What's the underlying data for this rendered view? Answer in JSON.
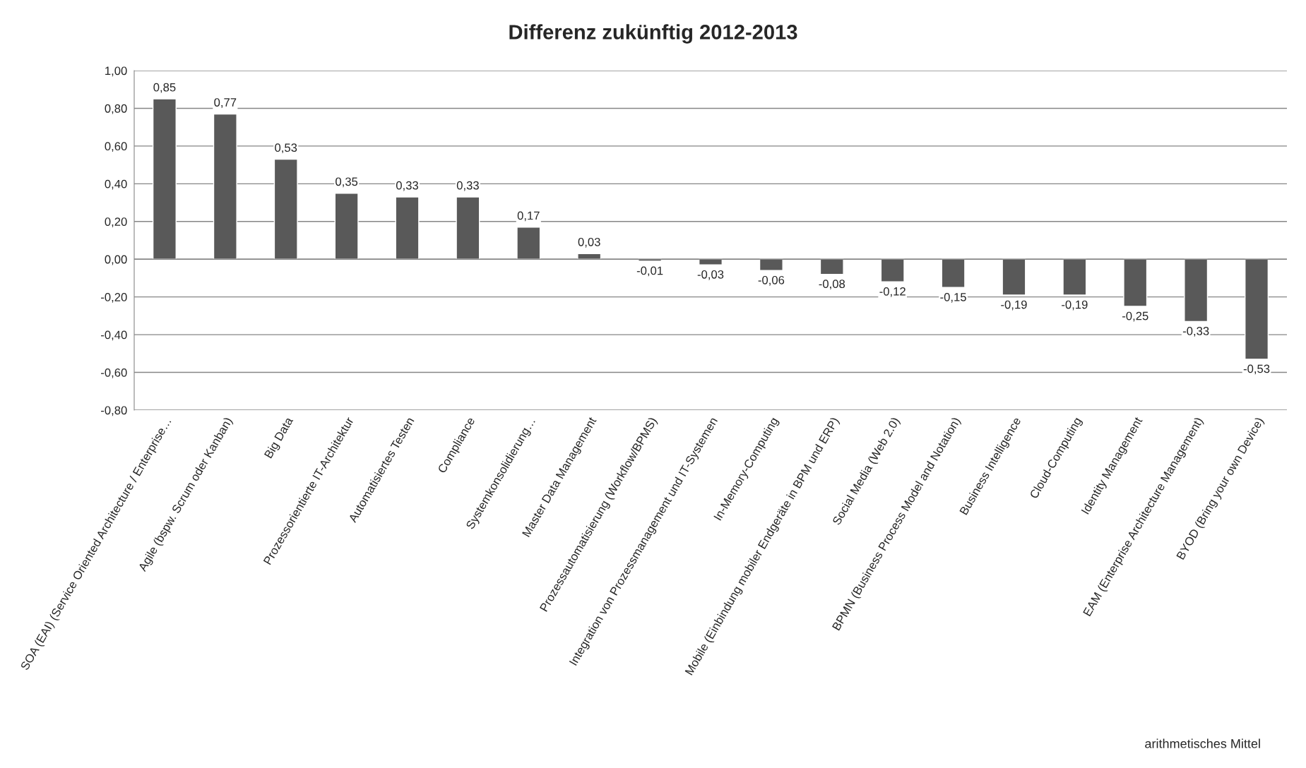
{
  "chart_data": {
    "type": "bar",
    "title": "Differenz zukünftig 2012-2013",
    "categories": [
      "SOA (EAI) (Service Oriented Architecture / Enterprise…",
      "Agile (bspw. Scrum oder Kanban)",
      "Big Data",
      "Prozessorientierte IT-Architektur",
      "Automatisiertes Testen",
      "Compliance",
      "Systemkonsolidierung…",
      "Master Data Management",
      "Prozessautomatisierung (Workflow/BPMS)",
      "Integration von Prozessmanagement und IT-Systemen",
      "In-Memory-Computing",
      "Mobile (Einbindung mobiler Endgeräte in BPM und ERP)",
      "Social Media (Web 2.0)",
      "BPMN (Business Process Model and Notation)",
      "Business Intelligence",
      "Cloud-Computing",
      "Identity Management",
      "EAM (Enterprise Architecture Management)",
      "BYOD (Bring your own Device)"
    ],
    "values": [
      0.85,
      0.77,
      0.53,
      0.35,
      0.33,
      0.33,
      0.17,
      0.03,
      -0.01,
      -0.03,
      -0.06,
      -0.08,
      -0.12,
      -0.15,
      -0.19,
      -0.19,
      -0.25,
      -0.33,
      -0.53
    ],
    "value_labels": [
      "0,85",
      "0,77",
      "0,53",
      "0,35",
      "0,33",
      "0,33",
      "0,17",
      "0,03",
      "-0,01",
      "-0,03",
      "-0,06",
      "-0,08",
      "-0,12",
      "-0,15",
      "-0,19",
      "-0,19",
      "-0,25",
      "-0,33",
      "-0,53"
    ],
    "color": "#595959",
    "ylim": [
      -0.8,
      1.0
    ],
    "yticks": [
      {
        "value": -0.8,
        "label": "-0,80"
      },
      {
        "value": -0.6,
        "label": "-0,60"
      },
      {
        "value": -0.4,
        "label": "-0,40"
      },
      {
        "value": -0.2,
        "label": "-0,20"
      },
      {
        "value": 0.0,
        "label": "0,00"
      },
      {
        "value": 0.2,
        "label": "0,20"
      },
      {
        "value": 0.4,
        "label": "0,40"
      },
      {
        "value": 0.6,
        "label": "0,60"
      },
      {
        "value": 0.8,
        "label": "0,80"
      },
      {
        "value": 1.0,
        "label": "1,00"
      }
    ],
    "grid": "y",
    "annotations": [
      "arithmetisches Mittel"
    ]
  }
}
